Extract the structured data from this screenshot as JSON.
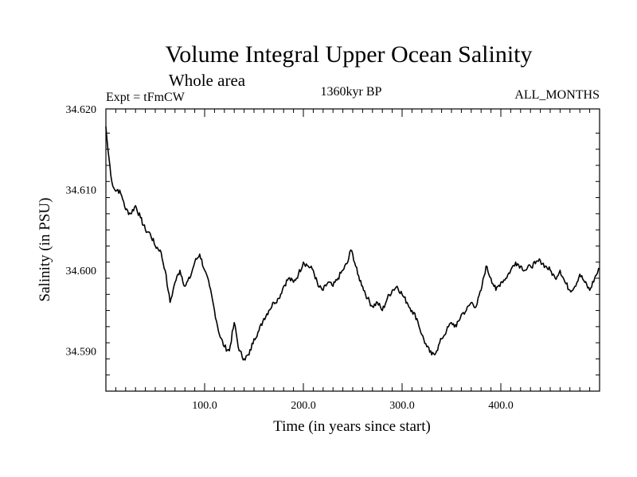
{
  "chart_data": {
    "type": "line",
    "title": "Volume Integral Upper Ocean Salinity",
    "subtitle": "Whole area",
    "experiment": "Expt = tFmCW",
    "period": "1360kyr BP",
    "months": "ALL_MONTHS",
    "xlabel": "Time (in years since start)",
    "ylabel": "Salinity (in PSU)",
    "xlim": [
      0,
      500
    ],
    "ylim": [
      34.585,
      34.62
    ],
    "x_ticks_major": [
      100,
      200,
      300,
      400
    ],
    "x_tick_labels": [
      "100.0",
      "200.0",
      "300.0",
      "400.0"
    ],
    "y_ticks_major": [
      34.59,
      34.6,
      34.61,
      34.62
    ],
    "y_tick_labels": [
      "34.590",
      "34.600",
      "34.610",
      "34.620"
    ],
    "grid": false,
    "series": [
      {
        "name": "salinity",
        "x": [
          0,
          2,
          4,
          6,
          8,
          10,
          12,
          15,
          18,
          20,
          25,
          30,
          35,
          40,
          45,
          50,
          55,
          60,
          63,
          65,
          68,
          70,
          75,
          80,
          85,
          90,
          95,
          100,
          105,
          110,
          115,
          120,
          125,
          130,
          135,
          140,
          145,
          150,
          155,
          160,
          165,
          170,
          175,
          180,
          185,
          190,
          195,
          200,
          205,
          210,
          215,
          220,
          225,
          230,
          235,
          240,
          245,
          248,
          250,
          255,
          260,
          265,
          270,
          275,
          280,
          285,
          290,
          295,
          300,
          305,
          310,
          315,
          320,
          325,
          330,
          335,
          340,
          345,
          350,
          355,
          360,
          365,
          370,
          375,
          380,
          385,
          390,
          395,
          400,
          405,
          410,
          415,
          420,
          425,
          430,
          435,
          440,
          445,
          450,
          455,
          460,
          465,
          470,
          475,
          480,
          485,
          490,
          495,
          500
        ],
        "values": [
          34.6178,
          34.615,
          34.613,
          34.611,
          34.6102,
          34.6098,
          34.61,
          34.6095,
          34.6085,
          34.6075,
          34.607,
          34.608,
          34.6065,
          34.605,
          34.6045,
          34.603,
          34.6025,
          34.6,
          34.5975,
          34.596,
          34.5975,
          34.5985,
          34.6,
          34.598,
          34.599,
          34.601,
          34.602,
          34.6,
          34.598,
          34.595,
          34.592,
          34.5905,
          34.59,
          34.5935,
          34.59,
          34.589,
          34.5895,
          34.5915,
          34.5925,
          34.594,
          34.595,
          34.596,
          34.5965,
          34.598,
          34.599,
          34.5985,
          34.5995,
          34.601,
          34.6005,
          34.6,
          34.598,
          34.5975,
          34.5985,
          34.598,
          34.599,
          34.6,
          34.601,
          34.6025,
          34.602,
          34.5995,
          34.598,
          34.5965,
          34.5955,
          34.596,
          34.595,
          34.5965,
          34.5975,
          34.598,
          34.597,
          34.596,
          34.595,
          34.594,
          34.592,
          34.5905,
          34.5895,
          34.59,
          34.5915,
          34.5925,
          34.5935,
          34.593,
          34.5945,
          34.595,
          34.596,
          34.5955,
          34.5975,
          34.6005,
          34.599,
          34.5975,
          34.5985,
          34.599,
          34.6,
          34.601,
          34.6005,
          34.6,
          34.6005,
          34.6008,
          34.6012,
          34.6005,
          34.6,
          34.599,
          34.6,
          34.5985,
          34.5975,
          34.598,
          34.5995,
          34.5985,
          34.5975,
          34.599,
          34.6002
        ]
      }
    ]
  }
}
